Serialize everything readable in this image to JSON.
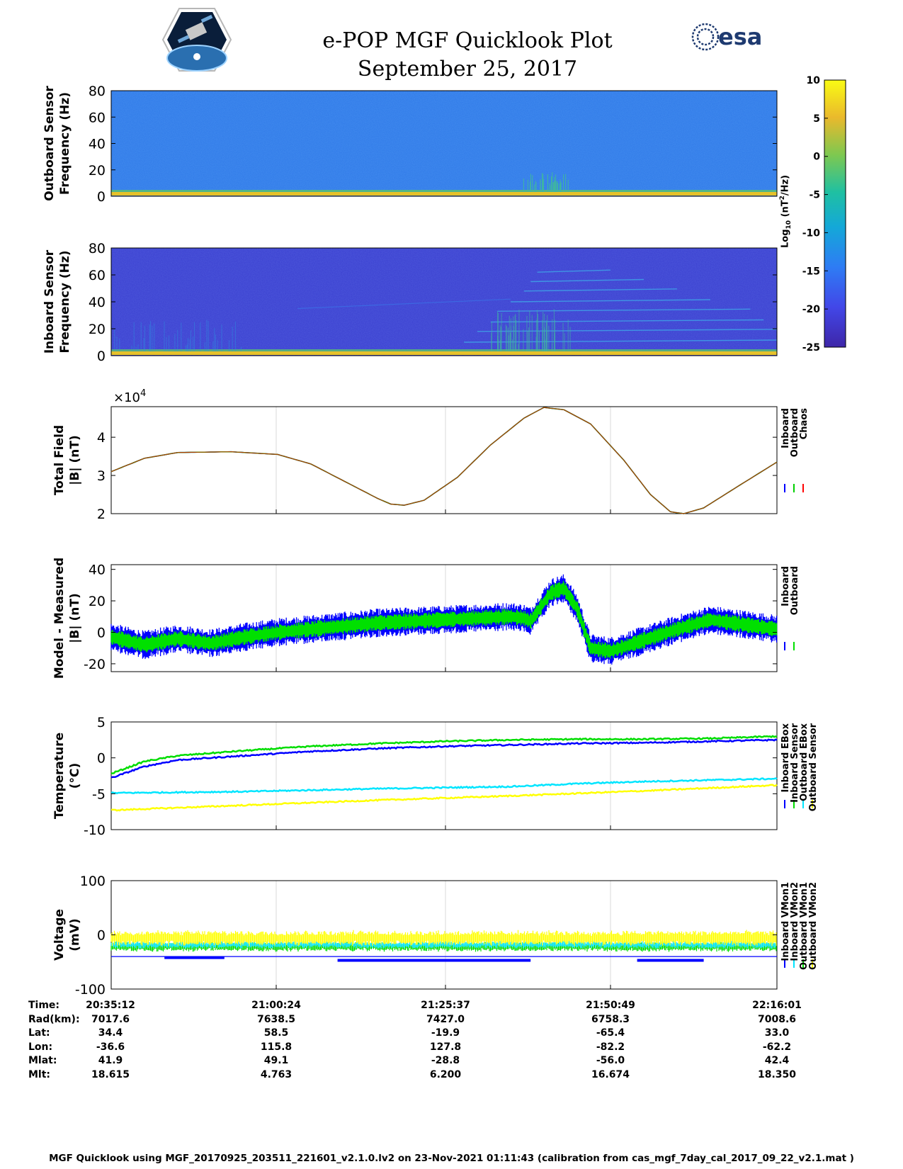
{
  "header": {
    "title": "e-POP MGF Quicklook Plot",
    "date": "September 25, 2017",
    "left_logo": "cassiope-mission-logo",
    "right_logo": "esa"
  },
  "colorbar": {
    "label": "Log10 (nT²/Hz)",
    "label_main": "Log",
    "label_sub": "10",
    "label_rest": " (nT",
    "label_sup": "2",
    "label_end": "/Hz)",
    "ticks": [
      "10",
      "5",
      "0",
      "-5",
      "-10",
      "-15",
      "-20",
      "-25"
    ],
    "range": [
      -25,
      10
    ]
  },
  "time_info": {
    "labels": [
      "Time:",
      "Rad(km):",
      "Lat:",
      "Lon:",
      "Mlat:",
      "Mlt:"
    ],
    "columns": [
      [
        "20:35:12",
        "7017.6",
        "34.4",
        "-36.6",
        "41.9",
        "18.615"
      ],
      [
        "21:00:24",
        "7638.5",
        "58.5",
        "115.8",
        "49.1",
        "4.763"
      ],
      [
        "21:25:37",
        "7427.0",
        "-19.9",
        "127.8",
        "-28.8",
        "6.200"
      ],
      [
        "21:50:49",
        "6758.3",
        "-65.4",
        "-82.2",
        "-56.0",
        "16.674"
      ],
      [
        "22:16:01",
        "7008.6",
        "33.0",
        "-62.2",
        "42.4",
        "18.350"
      ]
    ]
  },
  "footer": "MGF Quicklook using MGF_20170925_203511_221601_v2.1.0.lv2 on 23-Nov-2021 01:11:43 (calibration from cas_mgf_7day_cal_2017_09_22_v2.1.mat )",
  "chart_data": [
    {
      "type": "heatmap",
      "id": "outboard-spectrogram",
      "ylabel_lines": [
        "Outboard Sensor",
        "Frequency (Hz)"
      ],
      "yticks": [
        "80",
        "60",
        "40",
        "20",
        "0"
      ],
      "ylim": [
        0,
        80
      ],
      "background_level": -15,
      "colors": {
        "background": "#2f79e8",
        "low_freq_band": "#e6c12a"
      }
    },
    {
      "type": "heatmap",
      "id": "inboard-spectrogram",
      "ylabel_lines": [
        "Inboard Sensor",
        "Frequency (Hz)"
      ],
      "yticks": [
        "80",
        "60",
        "40",
        "20",
        "0"
      ],
      "ylim": [
        0,
        80
      ],
      "background_level": -22,
      "colors": {
        "background": "#3a3fd0",
        "low_freq_band": "#e6c12a"
      }
    },
    {
      "type": "line",
      "id": "total-field",
      "ylabel_lines": [
        "Total Field",
        "|B| (nT)"
      ],
      "multiplier": "×10",
      "multiplier_exp": "4",
      "yticks": [
        "4",
        "3",
        "2"
      ],
      "ylim": [
        2,
        4.8
      ],
      "xlim": [
        0,
        1
      ],
      "series": [
        {
          "name": "Inboard",
          "color": "#0000ff"
        },
        {
          "name": "Outboard",
          "color": "#00d000"
        },
        {
          "name": "Chaos",
          "color": "#ff0000"
        }
      ],
      "points": [
        [
          0,
          3.1
        ],
        [
          0.05,
          3.45
        ],
        [
          0.1,
          3.6
        ],
        [
          0.18,
          3.62
        ],
        [
          0.25,
          3.55
        ],
        [
          0.3,
          3.3
        ],
        [
          0.35,
          2.85
        ],
        [
          0.4,
          2.4
        ],
        [
          0.42,
          2.25
        ],
        [
          0.44,
          2.22
        ],
        [
          0.47,
          2.35
        ],
        [
          0.52,
          2.95
        ],
        [
          0.57,
          3.8
        ],
        [
          0.62,
          4.5
        ],
        [
          0.65,
          4.78
        ],
        [
          0.68,
          4.72
        ],
        [
          0.72,
          4.35
        ],
        [
          0.77,
          3.4
        ],
        [
          0.81,
          2.5
        ],
        [
          0.84,
          2.05
        ],
        [
          0.86,
          2.0
        ],
        [
          0.89,
          2.15
        ],
        [
          0.94,
          2.7
        ],
        [
          1.0,
          3.35
        ]
      ]
    },
    {
      "type": "line",
      "id": "model-measured",
      "ylabel_lines": [
        "Model - Measured",
        "|B| (nT)"
      ],
      "yticks": [
        "40",
        "20",
        "0",
        "-20"
      ],
      "ylim": [
        -25,
        43
      ],
      "xlim": [
        0,
        1
      ],
      "series": [
        {
          "name": "Inboard",
          "color": "#0000ff",
          "halfwidth": 7
        },
        {
          "name": "Outboard",
          "color": "#00e000",
          "halfwidth": 4
        }
      ],
      "center": [
        [
          0,
          -3
        ],
        [
          0.05,
          -8
        ],
        [
          0.1,
          -4
        ],
        [
          0.15,
          -7
        ],
        [
          0.2,
          -3
        ],
        [
          0.25,
          0
        ],
        [
          0.3,
          2
        ],
        [
          0.35,
          4
        ],
        [
          0.4,
          6
        ],
        [
          0.45,
          7
        ],
        [
          0.5,
          8
        ],
        [
          0.55,
          9
        ],
        [
          0.6,
          10
        ],
        [
          0.62,
          9
        ],
        [
          0.63,
          7
        ],
        [
          0.66,
          25
        ],
        [
          0.68,
          28
        ],
        [
          0.7,
          15
        ],
        [
          0.72,
          -10
        ],
        [
          0.75,
          -12
        ],
        [
          0.8,
          -5
        ],
        [
          0.85,
          2
        ],
        [
          0.9,
          8
        ],
        [
          0.95,
          5
        ],
        [
          1.0,
          2
        ]
      ]
    },
    {
      "type": "line",
      "id": "temperature",
      "ylabel_lines": [
        "Temperature",
        "(°C)"
      ],
      "yticks": [
        "5",
        "0",
        "-5",
        "-10"
      ],
      "ylim": [
        -10,
        5
      ],
      "xlim": [
        0,
        1
      ],
      "series": [
        {
          "name": "Inboard EBox",
          "color": "#0000ff",
          "points": [
            [
              0,
              -2.8
            ],
            [
              0.05,
              -1.2
            ],
            [
              0.1,
              -0.3
            ],
            [
              0.2,
              0.3
            ],
            [
              0.3,
              0.9
            ],
            [
              0.4,
              1.3
            ],
            [
              0.5,
              1.6
            ],
            [
              0.6,
              1.8
            ],
            [
              0.7,
              2.0
            ],
            [
              0.8,
              2.1
            ],
            [
              0.9,
              2.3
            ],
            [
              1.0,
              2.5
            ]
          ]
        },
        {
          "name": "Inboard Sensor",
          "color": "#00dd00",
          "points": [
            [
              0,
              -2.2
            ],
            [
              0.05,
              -0.5
            ],
            [
              0.1,
              0.3
            ],
            [
              0.2,
              1.0
            ],
            [
              0.3,
              1.6
            ],
            [
              0.4,
              2.0
            ],
            [
              0.5,
              2.3
            ],
            [
              0.6,
              2.5
            ],
            [
              0.7,
              2.6
            ],
            [
              0.8,
              2.6
            ],
            [
              0.9,
              2.7
            ],
            [
              1.0,
              3.0
            ]
          ]
        },
        {
          "name": "Outboard EBox",
          "color": "#00e5ff",
          "points": [
            [
              0,
              -4.9
            ],
            [
              0.2,
              -4.7
            ],
            [
              0.4,
              -4.3
            ],
            [
              0.6,
              -4.0
            ],
            [
              0.7,
              -3.6
            ],
            [
              0.8,
              -3.3
            ],
            [
              0.9,
              -3.1
            ],
            [
              1.0,
              -2.9
            ]
          ]
        },
        {
          "name": "Outboard Sensor",
          "color": "#ffff00",
          "points": [
            [
              0,
              -7.3
            ],
            [
              0.2,
              -6.6
            ],
            [
              0.4,
              -5.9
            ],
            [
              0.6,
              -5.3
            ],
            [
              0.8,
              -4.6
            ],
            [
              0.9,
              -4.2
            ],
            [
              1.0,
              -3.8
            ]
          ]
        }
      ]
    },
    {
      "type": "line",
      "id": "voltage",
      "ylabel_lines": [
        "Voltage",
        "(mV)"
      ],
      "yticks": [
        "100",
        "0",
        "-100"
      ],
      "ylim": [
        -100,
        100
      ],
      "xlim": [
        0,
        1
      ],
      "series": [
        {
          "name": "Inboard VMon1",
          "color": "#0000ff",
          "level": -42
        },
        {
          "name": "Inboard VMon2",
          "color": "#00e5ff",
          "level": -12
        },
        {
          "name": "Outboard VMon1",
          "color": "#00dd00",
          "level": -15
        },
        {
          "name": "Outboard VMon2",
          "color": "#ffff00",
          "level": -5
        }
      ]
    }
  ]
}
